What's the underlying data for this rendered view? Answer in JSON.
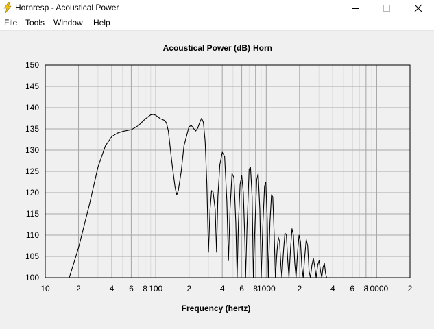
{
  "window": {
    "title": "Hornresp - Acoustical Power",
    "icon": "lightning-bolt-icon",
    "controls": [
      "minimize-icon",
      "maximize-icon",
      "close-icon"
    ]
  },
  "menu": {
    "items": [
      "File",
      "Tools",
      "Window",
      "Help"
    ]
  },
  "chart_data": {
    "type": "line",
    "title_main": "Acoustical Power (dB)",
    "title_sub": "Horn",
    "xlabel": "Frequency (hertz)",
    "ylabel": "",
    "x_scale": "log",
    "xlim": [
      10,
      20000
    ],
    "ylim": [
      100,
      150
    ],
    "grid": true,
    "x_ticks": [
      {
        "value": 10,
        "label": "10"
      },
      {
        "value": 20,
        "label": "2"
      },
      {
        "value": 40,
        "label": "4"
      },
      {
        "value": 60,
        "label": "6"
      },
      {
        "value": 80,
        "label": "8"
      },
      {
        "value": 100,
        "label": "100"
      },
      {
        "value": 200,
        "label": "2"
      },
      {
        "value": 400,
        "label": "4"
      },
      {
        "value": 600,
        "label": "6"
      },
      {
        "value": 800,
        "label": "8"
      },
      {
        "value": 1000,
        "label": "1000"
      },
      {
        "value": 2000,
        "label": "2"
      },
      {
        "value": 4000,
        "label": "4"
      },
      {
        "value": 6000,
        "label": "6"
      },
      {
        "value": 8000,
        "label": "8"
      },
      {
        "value": 10000,
        "label": "10000"
      },
      {
        "value": 20000,
        "label": "2"
      }
    ],
    "y_ticks": [
      100,
      105,
      110,
      115,
      120,
      125,
      130,
      135,
      140,
      145,
      150
    ],
    "series": [
      {
        "color": "#000000",
        "points": [
          [
            16.5,
            100
          ],
          [
            20,
            107
          ],
          [
            25,
            117
          ],
          [
            30,
            126
          ],
          [
            35,
            131
          ],
          [
            40,
            133.2
          ],
          [
            45,
            134
          ],
          [
            50,
            134.4
          ],
          [
            60,
            134.8
          ],
          [
            70,
            135.8
          ],
          [
            80,
            137.3
          ],
          [
            90,
            138.3
          ],
          [
            95,
            138.4
          ],
          [
            100,
            138.2
          ],
          [
            110,
            137.4
          ],
          [
            120,
            137.0
          ],
          [
            125,
            136.4
          ],
          [
            130,
            134.5
          ],
          [
            140,
            127
          ],
          [
            150,
            121
          ],
          [
            155,
            119.5
          ],
          [
            160,
            120.5
          ],
          [
            170,
            125
          ],
          [
            180,
            131
          ],
          [
            200,
            135.5
          ],
          [
            210,
            135.8
          ],
          [
            220,
            135.1
          ],
          [
            230,
            134.5
          ],
          [
            240,
            135.2
          ],
          [
            250,
            136.5
          ],
          [
            260,
            137.5
          ],
          [
            270,
            136.5
          ],
          [
            280,
            132
          ],
          [
            290,
            122
          ],
          [
            300,
            106
          ],
          [
            310,
            116
          ],
          [
            320,
            120.5
          ],
          [
            330,
            120.2
          ],
          [
            345,
            116
          ],
          [
            355,
            106
          ],
          [
            365,
            119
          ],
          [
            380,
            126.5
          ],
          [
            400,
            129.5
          ],
          [
            420,
            128.5
          ],
          [
            440,
            118
          ],
          [
            455,
            104
          ],
          [
            470,
            116
          ],
          [
            490,
            124.5
          ],
          [
            510,
            123.5
          ],
          [
            530,
            113
          ],
          [
            545,
            100
          ],
          [
            560,
            113
          ],
          [
            580,
            122
          ],
          [
            600,
            124
          ],
          [
            620,
            120
          ],
          [
            640,
            109
          ],
          [
            650,
            100
          ],
          [
            670,
            112
          ],
          [
            700,
            125.5
          ],
          [
            720,
            126
          ],
          [
            745,
            119
          ],
          [
            765,
            100
          ],
          [
            790,
            112
          ],
          [
            820,
            123
          ],
          [
            845,
            124.5
          ],
          [
            875,
            116
          ],
          [
            900,
            100
          ],
          [
            930,
            112
          ],
          [
            965,
            121.5
          ],
          [
            990,
            122.5
          ],
          [
            1020,
            114
          ],
          [
            1045,
            100
          ],
          [
            1080,
            113
          ],
          [
            1115,
            119.5
          ],
          [
            1145,
            119
          ],
          [
            1180,
            110
          ],
          [
            1210,
            100
          ],
          [
            1250,
            106
          ],
          [
            1285,
            109.5
          ],
          [
            1320,
            108.5
          ],
          [
            1355,
            103
          ],
          [
            1385,
            100
          ],
          [
            1430,
            106
          ],
          [
            1475,
            110.5
          ],
          [
            1520,
            110
          ],
          [
            1565,
            104
          ],
          [
            1605,
            100
          ],
          [
            1660,
            107
          ],
          [
            1710,
            111.5
          ],
          [
            1760,
            110
          ],
          [
            1810,
            103.5
          ],
          [
            1860,
            100
          ],
          [
            1920,
            106
          ],
          [
            1980,
            110
          ],
          [
            2040,
            108.5
          ],
          [
            2100,
            102.5
          ],
          [
            2160,
            100
          ],
          [
            2230,
            105
          ],
          [
            2300,
            109
          ],
          [
            2370,
            107.5
          ],
          [
            2440,
            101.5
          ],
          [
            2510,
            100
          ],
          [
            2590,
            103
          ],
          [
            2670,
            104.5
          ],
          [
            2750,
            102.5
          ],
          [
            2830,
            100
          ],
          [
            2920,
            103
          ],
          [
            3010,
            104
          ],
          [
            3100,
            101.5
          ],
          [
            3180,
            100
          ],
          [
            3270,
            102.5
          ],
          [
            3360,
            103.3
          ],
          [
            3440,
            101
          ],
          [
            3520,
            100
          ]
        ]
      }
    ]
  }
}
